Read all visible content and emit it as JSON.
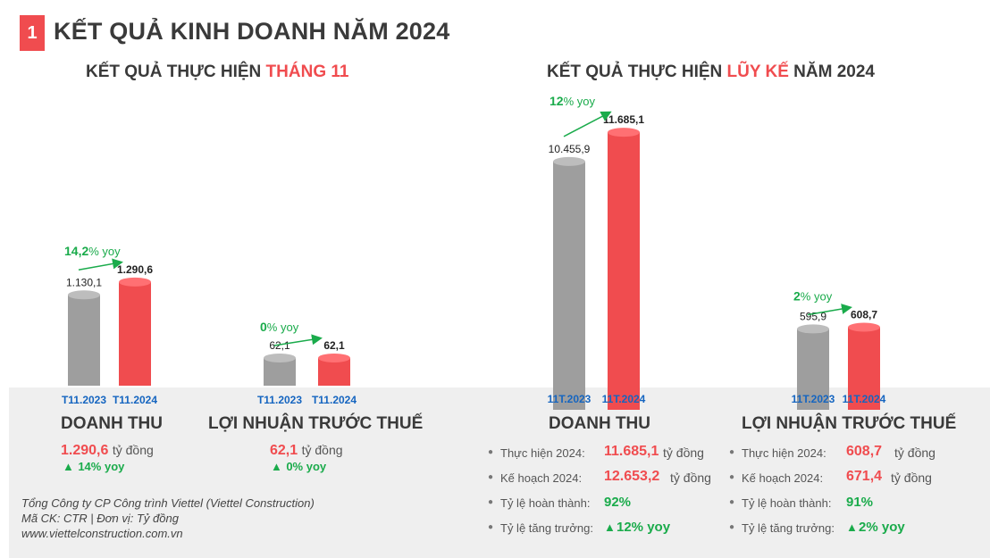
{
  "header": {
    "number": "1",
    "title": "KẾT QUẢ KINH DOANH NĂM 2024"
  },
  "left_subtitle": {
    "prefix": "KẾT QUẢ THỰC HIỆN ",
    "highlight": "THÁNG 11"
  },
  "right_subtitle": {
    "prefix": "KẾT QUẢ THỰC HIỆN ",
    "highlight": "LŨY KẾ",
    "suffix": " NĂM 2024"
  },
  "colors": {
    "prev": "#9e9e9e",
    "curr": "#f04c4f",
    "growth": "#1aab4b",
    "tick": "#1565c0"
  },
  "chart_data": [
    {
      "type": "bar",
      "title": "DOANH THU",
      "categories": [
        "T11.2023",
        "T11.2024"
      ],
      "values": [
        1130.1,
        1290.6
      ],
      "value_labels": [
        "1.130,1",
        "1.290,6"
      ],
      "growth": {
        "num": "14,2",
        "unit": "% yoy"
      }
    },
    {
      "type": "bar",
      "title": "LỢI NHUẬN TRƯỚC THUẾ",
      "categories": [
        "T11.2023",
        "T11.2024"
      ],
      "values": [
        62.1,
        62.1
      ],
      "value_labels": [
        "62,1",
        "62,1"
      ],
      "growth": {
        "num": "0",
        "unit": "% yoy"
      }
    },
    {
      "type": "bar",
      "title": "DOANH THU",
      "categories": [
        "11T.2023",
        "11T.2024"
      ],
      "values": [
        10455.9,
        11685.1
      ],
      "value_labels": [
        "10.455,9",
        "11.685,1"
      ],
      "growth": {
        "num": "12",
        "unit": "% yoy"
      }
    },
    {
      "type": "bar",
      "title": "LỢI NHUẬN TRƯỚC THUẾ",
      "categories": [
        "11T.2023",
        "11T.2024"
      ],
      "values": [
        595.9,
        608.7
      ],
      "value_labels": [
        "595,9",
        "608,7"
      ],
      "growth": {
        "num": "2",
        "unit": "% yoy"
      }
    }
  ],
  "left_summary": [
    {
      "value": "1.290,6",
      "unit": "tỷ đồng",
      "growth": "14% yoy"
    },
    {
      "value": "62,1",
      "unit": "tỷ đồng",
      "growth": "0% yoy"
    }
  ],
  "right_details": [
    {
      "rows": [
        {
          "label": "Thực hiện 2024:",
          "value": "11.685,1",
          "unit": "tỷ đồng"
        },
        {
          "label": "Kế hoạch 2024:",
          "value": "12.653,2",
          "unit": "tỷ đồng"
        },
        {
          "label": "Tỷ lệ hoàn thành:",
          "value": "92%"
        },
        {
          "label": "Tỷ lệ tăng trưởng:",
          "value": "12% yoy"
        }
      ]
    },
    {
      "rows": [
        {
          "label": "Thực hiện 2024:",
          "value": "608,7",
          "unit": "tỷ đồng"
        },
        {
          "label": "Kế hoạch 2024:",
          "value": "671,4",
          "unit": "tỷ đồng"
        },
        {
          "label": "Tỷ lệ hoàn thành:",
          "value": "91%"
        },
        {
          "label": "Tỷ lệ tăng trưởng:",
          "value": "2% yoy"
        }
      ]
    }
  ],
  "footer": {
    "line1": "Tổng Công ty CP Công trình Viettel (Viettel Construction)",
    "line2": "Mã CK: CTR  |  Đơn vị: Tỷ đồng",
    "line3": "www.viettelconstruction.com.vn"
  }
}
